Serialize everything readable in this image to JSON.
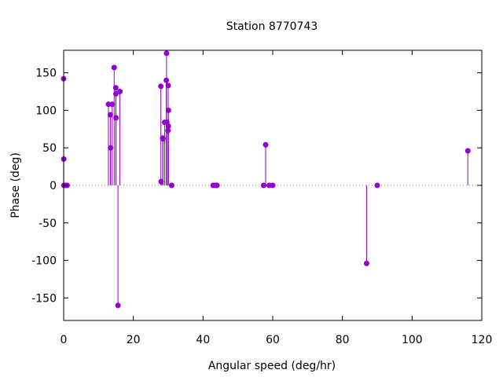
{
  "chart_data": {
    "type": "scatter",
    "title": "Station 8770743",
    "xlabel": "Angular speed (deg/hr)",
    "ylabel": "Phase (deg)",
    "xlim": [
      0,
      120
    ],
    "ylim": [
      -180,
      180
    ],
    "x_ticks": [
      0,
      20,
      40,
      60,
      80,
      100,
      120
    ],
    "y_ticks": [
      -150,
      -100,
      -50,
      0,
      50,
      100,
      150
    ],
    "grid": false,
    "zero_line": true,
    "series_color": "#9400d3",
    "points": [
      {
        "x": 0.0,
        "y": 142
      },
      {
        "x": 0.04,
        "y": 35
      },
      {
        "x": 0.08,
        "y": 0
      },
      {
        "x": 0.54,
        "y": 0
      },
      {
        "x": 1.0,
        "y": 0
      },
      {
        "x": 12.85,
        "y": 108
      },
      {
        "x": 13.4,
        "y": 94
      },
      {
        "x": 13.47,
        "y": 50
      },
      {
        "x": 13.94,
        "y": 108
      },
      {
        "x": 14.5,
        "y": 157
      },
      {
        "x": 14.96,
        "y": 130
      },
      {
        "x": 15.04,
        "y": 90
      },
      {
        "x": 15.0,
        "y": 122
      },
      {
        "x": 15.59,
        "y": -160
      },
      {
        "x": 16.14,
        "y": 125
      },
      {
        "x": 27.9,
        "y": 132
      },
      {
        "x": 27.97,
        "y": 5
      },
      {
        "x": 28.44,
        "y": 63
      },
      {
        "x": 28.51,
        "y": 62
      },
      {
        "x": 28.98,
        "y": 84
      },
      {
        "x": 29.46,
        "y": 140
      },
      {
        "x": 29.53,
        "y": 176
      },
      {
        "x": 29.6,
        "y": 84
      },
      {
        "x": 30.0,
        "y": 133
      },
      {
        "x": 30.04,
        "y": 79
      },
      {
        "x": 29.96,
        "y": 73
      },
      {
        "x": 30.08,
        "y": 100
      },
      {
        "x": 31.0,
        "y": 0
      },
      {
        "x": 42.9,
        "y": 0
      },
      {
        "x": 43.5,
        "y": 0
      },
      {
        "x": 44.0,
        "y": 0
      },
      {
        "x": 57.4,
        "y": 0
      },
      {
        "x": 57.97,
        "y": 54
      },
      {
        "x": 58.98,
        "y": 0
      },
      {
        "x": 60.0,
        "y": 0
      },
      {
        "x": 86.95,
        "y": -104
      },
      {
        "x": 90.0,
        "y": 0
      },
      {
        "x": 116.0,
        "y": 46
      }
    ]
  }
}
